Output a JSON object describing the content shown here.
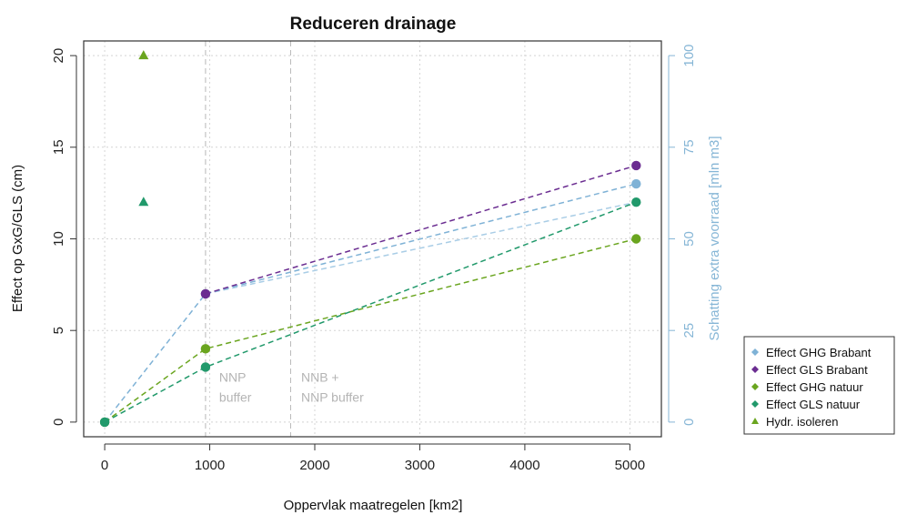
{
  "chart_data": {
    "type": "line",
    "title": "Reduceren drainage",
    "xlabel": "Oppervlak maatregelen [km2]",
    "ylabel": "Effect op GxG/GLS (cm)",
    "ylabel_right": "Schatting extra voorraad [mln m3]",
    "xlim": [
      -200,
      5300
    ],
    "ylim": [
      -0.8,
      20.8
    ],
    "ylim_right": [
      0,
      100
    ],
    "x_ticks": [
      0,
      1000,
      2000,
      3000,
      4000,
      5000
    ],
    "y_ticks": [
      0,
      5,
      10,
      15,
      20
    ],
    "y_ticks_right": [
      0,
      25,
      50,
      75,
      100
    ],
    "grid": true,
    "legend_position": "right, outside plot",
    "series": [
      {
        "name": "Effect GHG Brabant",
        "color": "#7fb2d6",
        "marker": "circle",
        "x": [
          0,
          960,
          5060
        ],
        "y": [
          0,
          7,
          13
        ]
      },
      {
        "name": "Effect GLS Brabant",
        "color": "#6b2d91",
        "marker": "circle",
        "x": [
          960,
          5060
        ],
        "y": [
          7,
          14
        ]
      },
      {
        "name": "Effect GHG natuur",
        "color": "#6aa51f",
        "marker": "circle",
        "x": [
          0,
          960,
          5060
        ],
        "y": [
          0,
          4,
          10
        ]
      },
      {
        "name": "Effect GLS natuur",
        "color": "#21996b",
        "marker": "circle",
        "x": [
          0,
          960,
          5060
        ],
        "y": [
          0,
          3,
          12
        ]
      },
      {
        "name": "Hydr. isoleren",
        "color": "#6aa51f",
        "marker": "triangle",
        "x": [
          370,
          370
        ],
        "y": [
          20,
          12
        ],
        "colors": [
          "#6aa51f",
          "#21996b"
        ]
      }
    ],
    "extra_lines": [
      {
        "color": "#a9cde6",
        "x": [
          960,
          5060
        ],
        "y": [
          7,
          12
        ]
      }
    ],
    "vlines": [
      960,
      1770
    ],
    "annotations": [
      {
        "text": [
          "NNP",
          "buffer"
        ],
        "x": 1090,
        "y": 1.1
      },
      {
        "text": [
          "NNB +",
          "NNP buffer"
        ],
        "x": 1870,
        "y": 1.1
      }
    ]
  }
}
